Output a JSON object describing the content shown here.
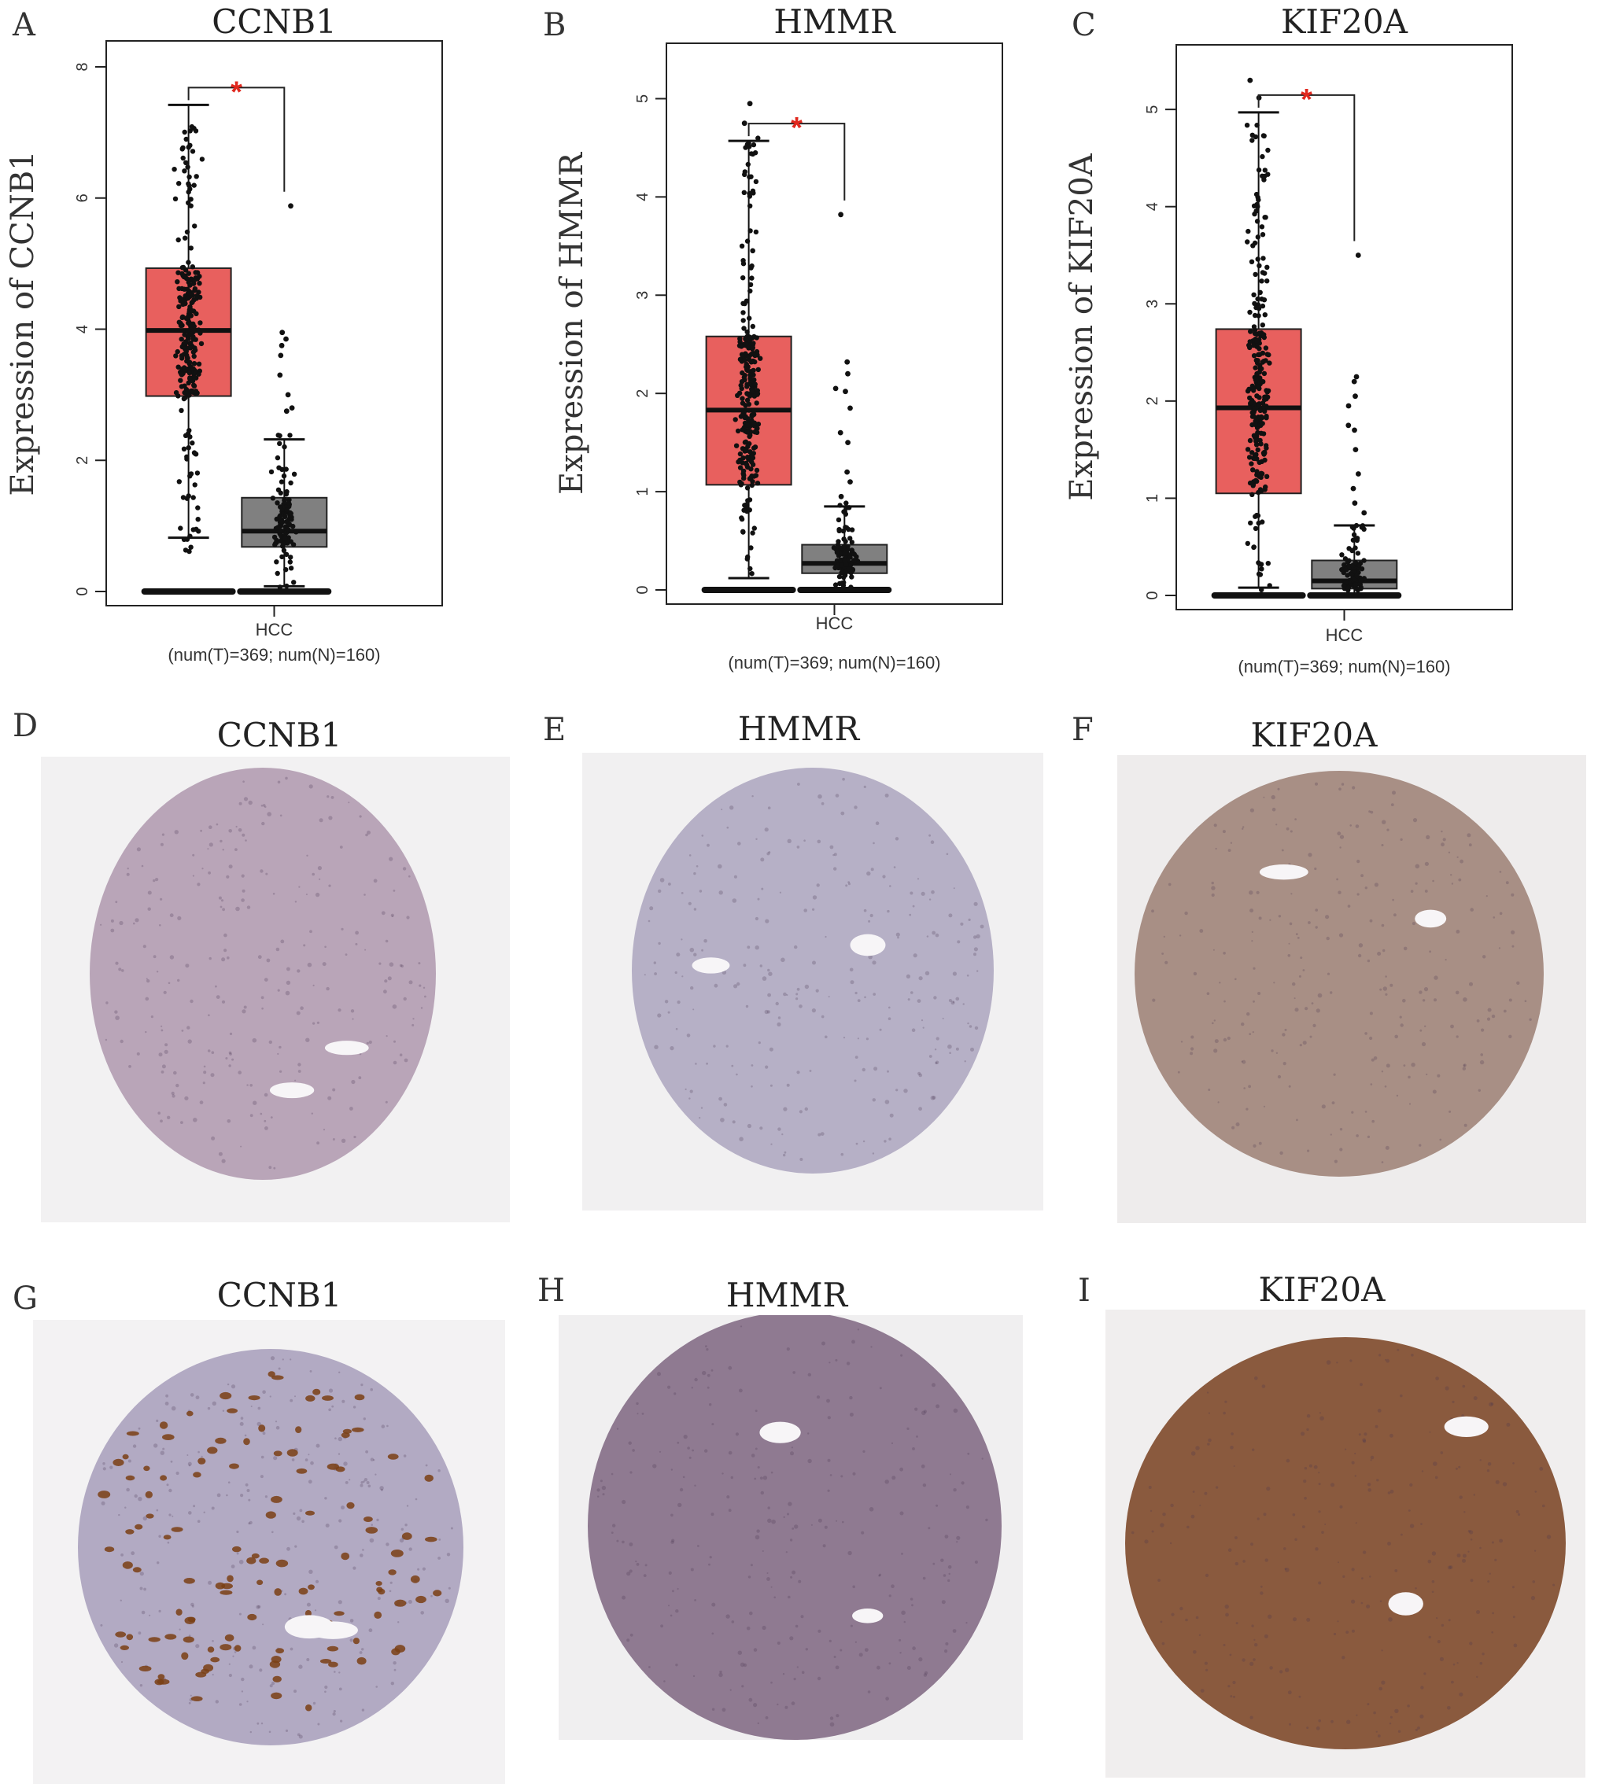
{
  "chart_data": [
    {
      "type": "box",
      "panel": "A",
      "title": "CCNB1",
      "ylabel": "Expression of CCNB1",
      "xlabel": "HCC",
      "subtitle": "(num(T)=369; num(N)=160)",
      "ylim": [
        0,
        8.3
      ],
      "yticks": [
        0,
        2,
        4,
        6,
        8
      ],
      "significance": "*",
      "groups": [
        {
          "n": 369,
          "color": "#e8605e",
          "q1": 2.98,
          "median": 3.98,
          "q3": 4.93,
          "whisker_low": 0.82,
          "whisker_high": 7.42,
          "zero_cluster": true,
          "spread_low": 0.6,
          "spread_high": 7.1
        },
        {
          "n": 160,
          "color": "#808080",
          "q1": 0.68,
          "median": 0.92,
          "q3": 1.43,
          "whisker_low": 0.08,
          "whisker_high": 2.32,
          "zero_cluster": true,
          "outliers": [
            5.88,
            3.95,
            3.85,
            3.75,
            3.6,
            3.3,
            3.0,
            2.8,
            2.75
          ],
          "spread_low": 0.05,
          "spread_high": 2.4
        }
      ]
    },
    {
      "type": "box",
      "panel": "B",
      "title": "HMMR",
      "ylabel": "Expression of  HMMR",
      "xlabel": "HCC",
      "subtitle": "(num(T)=369; num(N)=160)",
      "ylim": [
        0,
        5.5
      ],
      "yticks": [
        0,
        1,
        2,
        3,
        4,
        5
      ],
      "significance": "*",
      "groups": [
        {
          "n": 369,
          "color": "#e8605e",
          "q1": 1.07,
          "median": 1.83,
          "q3": 2.58,
          "whisker_low": 0.12,
          "whisker_high": 4.57,
          "zero_cluster": true,
          "spread_low": 0.1,
          "spread_high": 4.6,
          "outliers": [
            4.95,
            4.75
          ]
        },
        {
          "n": 160,
          "color": "#808080",
          "q1": 0.17,
          "median": 0.27,
          "q3": 0.46,
          "whisker_low": 0.0,
          "whisker_high": 0.85,
          "zero_cluster": true,
          "outliers": [
            3.82,
            2.32,
            2.2,
            2.05,
            2.02,
            1.85,
            1.6,
            1.5,
            1.2,
            1.1,
            0.95
          ],
          "spread_low": 0.02,
          "spread_high": 0.9
        }
      ]
    },
    {
      "type": "box",
      "panel": "C",
      "title": "KIF20A",
      "ylabel": "Expression of  KIF20A",
      "xlabel": "HCC",
      "subtitle": "(num(T)=369; num(N)=160)",
      "ylim": [
        0,
        5.6
      ],
      "yticks": [
        0,
        1,
        2,
        3,
        4,
        5
      ],
      "significance": "*",
      "groups": [
        {
          "n": 369,
          "color": "#e8605e",
          "q1": 1.05,
          "median": 1.93,
          "q3": 2.74,
          "whisker_low": 0.08,
          "whisker_high": 4.97,
          "zero_cluster": true,
          "spread_low": 0.05,
          "spread_high": 4.9,
          "outliers": [
            5.3,
            5.12
          ]
        },
        {
          "n": 160,
          "color": "#808080",
          "q1": 0.07,
          "median": 0.15,
          "q3": 0.36,
          "whisker_low": 0.0,
          "whisker_high": 0.72,
          "zero_cluster": true,
          "outliers": [
            3.5,
            2.25,
            2.2,
            2.05,
            1.95,
            1.75,
            1.7,
            1.5,
            1.25,
            1.1,
            0.95,
            0.85
          ],
          "spread_low": 0.02,
          "spread_high": 0.75
        }
      ]
    }
  ],
  "ihc_panels": [
    {
      "letter": "D",
      "title": "CCNB1",
      "stain": "#b9a5b8",
      "bg": "#f2f1f2",
      "dark_spots": false
    },
    {
      "letter": "E",
      "title": "HMMR",
      "stain": "#b6b0c6",
      "bg": "#f1f0f1",
      "dark_spots": false
    },
    {
      "letter": "F",
      "title": "KIF20A",
      "stain": "#a88f85",
      "bg": "#eeecec",
      "dark_spots": false
    },
    {
      "letter": "G",
      "title": "CCNB1",
      "stain": "#b2aac3",
      "bg": "#f3f2f3",
      "dark_spots": true
    },
    {
      "letter": "H",
      "title": "HMMR",
      "stain": "#8f7a91",
      "bg": "#f0eff0",
      "dark_spots": false
    },
    {
      "letter": "I",
      "title": "KIF20A",
      "stain": "#8a5a3e",
      "bg": "#f0eeee",
      "dark_spots": false
    }
  ]
}
